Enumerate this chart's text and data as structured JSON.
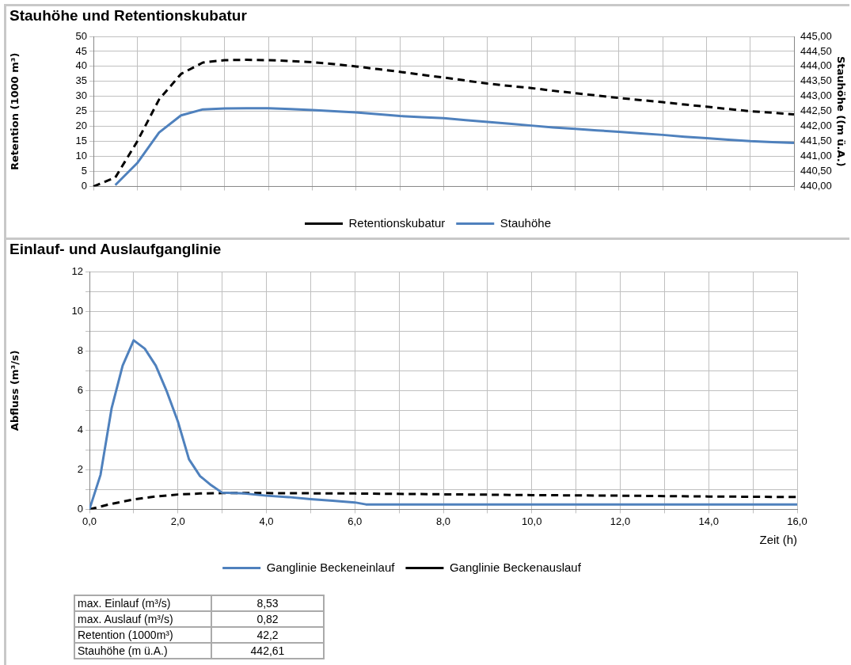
{
  "chart_data": [
    {
      "type": "line",
      "title": "Stauhöhe und Retentionskubatur",
      "ylabel": "Retention (1000 m³)",
      "y2label": "Stauhöhe ((m ü.A.)",
      "categories": [
        null,
        null,
        null,
        null,
        null,
        null,
        null,
        null,
        null,
        null,
        null,
        null,
        null,
        null,
        null,
        null,
        null,
        null,
        null,
        null,
        null,
        null,
        null,
        null,
        null,
        null,
        null,
        null,
        null,
        null,
        null,
        null,
        null
      ],
      "ylim": [
        0,
        50
      ],
      "yticks": [
        0,
        5,
        10,
        15,
        20,
        25,
        30,
        35,
        40,
        45,
        50
      ],
      "y2lim": [
        440,
        445
      ],
      "y2ticks": [
        {
          "value": 440,
          "label": "440,00"
        },
        {
          "value": 440.5,
          "label": "440,50"
        },
        {
          "value": 441,
          "label": "441,00"
        },
        {
          "value": 441.5,
          "label": "441,50"
        },
        {
          "value": 442,
          "label": "442,00"
        },
        {
          "value": 442.5,
          "label": "442,50"
        },
        {
          "value": 443,
          "label": "443,00"
        },
        {
          "value": 443.5,
          "label": "443,50"
        },
        {
          "value": 444,
          "label": "444,00"
        },
        {
          "value": 444.5,
          "label": "444,50"
        },
        {
          "value": 445,
          "label": "445,00"
        }
      ],
      "grid": true,
      "legend": "bottom",
      "series": [
        {
          "name": "Retentionskubatur",
          "color": "#000000",
          "line_style": "dashed",
          "values": [
            0,
            3,
            15,
            29,
            37.5,
            41.3,
            42.1,
            42.2,
            42.1,
            41.8,
            41.4,
            40.8,
            40,
            39.1,
            38.2,
            37.2,
            36.3,
            35.3,
            34.3,
            33.5,
            32.8,
            31.9,
            31.1,
            30.3,
            29.5,
            28.8,
            28.1,
            27.3,
            26.6,
            25.8,
            25.1,
            24.6,
            24
          ]
        },
        {
          "name": "Stauhöhe",
          "color": "#4f81bd",
          "line_style": "solid",
          "axis": "y2",
          "values": [
            null,
            440.05,
            440.78,
            441.8,
            442.37,
            442.57,
            442.6,
            442.61,
            442.61,
            442.58,
            442.55,
            442.51,
            442.47,
            442.41,
            442.35,
            442.31,
            442.28,
            442.21,
            442.15,
            442.09,
            442.03,
            441.97,
            441.92,
            441.87,
            441.82,
            441.77,
            441.72,
            441.66,
            441.61,
            441.56,
            441.51,
            441.48,
            441.45
          ]
        }
      ]
    },
    {
      "type": "line",
      "title": "Einlauf- und Auslaufganglinie",
      "ylabel": "Abfluss (m³/s)",
      "xlabel": "Zeit (h)",
      "xlim": [
        0,
        16
      ],
      "xticks": [
        {
          "value": 0,
          "label": "0,0"
        },
        {
          "value": 1,
          "label": null
        },
        {
          "value": 2,
          "label": "2,0"
        },
        {
          "value": 3,
          "label": null
        },
        {
          "value": 4,
          "label": "4,0"
        },
        {
          "value": 5,
          "label": null
        },
        {
          "value": 6,
          "label": "6,0"
        },
        {
          "value": 7,
          "label": null
        },
        {
          "value": 8,
          "label": "8,0"
        },
        {
          "value": 9,
          "label": null
        },
        {
          "value": 10,
          "label": "10,0"
        },
        {
          "value": 11,
          "label": null
        },
        {
          "value": 12,
          "label": "12,0"
        },
        {
          "value": 13,
          "label": null
        },
        {
          "value": 14,
          "label": "14,0"
        },
        {
          "value": 15,
          "label": null
        },
        {
          "value": 16,
          "label": "16,0"
        }
      ],
      "ylim": [
        0,
        12
      ],
      "yticks": [
        0,
        {
          "value": 1,
          "label": null
        },
        2,
        {
          "value": 3,
          "label": null
        },
        4,
        {
          "value": 5,
          "label": null
        },
        6,
        {
          "value": 7,
          "label": null
        },
        8,
        {
          "value": 9,
          "label": null
        },
        10,
        {
          "value": 11,
          "label": null
        },
        12
      ],
      "grid": true,
      "legend": "bottom",
      "series": [
        {
          "name": "Ganglinie Beckeneinlauf",
          "color": "#4f81bd",
          "line_style": "solid",
          "x": [
            0,
            0.25,
            0.5,
            0.75,
            1,
            1.25,
            1.5,
            1.75,
            2,
            2.25,
            2.5,
            2.75,
            3,
            3.5,
            4,
            4.5,
            5,
            5.5,
            6,
            6.25,
            8,
            10,
            12,
            14,
            16
          ],
          "values": [
            0,
            1.74,
            5.09,
            7.25,
            8.53,
            8.11,
            7.25,
            5.94,
            4.43,
            2.53,
            1.68,
            1.22,
            0.84,
            0.8,
            0.69,
            0.62,
            0.52,
            0.44,
            0.35,
            0.25,
            0.25,
            0.25,
            0.25,
            0.25,
            0.25
          ]
        },
        {
          "name": "Ganglinie Beckenauslauf",
          "color": "#000000",
          "line_style": "dashed",
          "x": [
            0,
            0.5,
            1,
            1.5,
            2,
            2.5,
            3,
            4,
            5,
            6,
            8,
            10,
            12,
            14,
            16
          ],
          "values": [
            0,
            0.28,
            0.5,
            0.65,
            0.75,
            0.8,
            0.82,
            0.82,
            0.81,
            0.8,
            0.76,
            0.72,
            0.69,
            0.65,
            0.62
          ]
        }
      ]
    },
    {
      "type": "other",
      "annotations": [
        "max. Einlauf (m³/s)",
        "8,53",
        "max. Auslauf (m³/s)",
        "0,82",
        "Retention (1000m³)",
        "42,2",
        "Stauhöhe (m ü.A.)",
        "442,61"
      ]
    }
  ]
}
